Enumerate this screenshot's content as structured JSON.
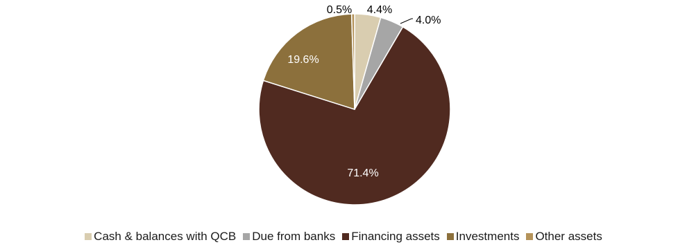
{
  "chart_data": {
    "type": "pie",
    "categories": [
      "Cash & balances with QCB",
      "Due from banks",
      "Financing assets",
      "Investments",
      "Other assets"
    ],
    "values": [
      4.4,
      4.0,
      71.4,
      19.6,
      0.5
    ],
    "value_labels": [
      "4.4%",
      "4.0%",
      "71.4%",
      "19.6%",
      "0.5%"
    ],
    "colors": [
      "#d9cdb0",
      "#a6a6a6",
      "#502a20",
      "#8c703c",
      "#b5935a"
    ],
    "label_colors": [
      "#000000",
      "#000000",
      "#ffffff",
      "#ffffff",
      "#000000"
    ],
    "legend_position": "bottom",
    "start_angle": "12 o'clock",
    "direction": "clockwise"
  }
}
